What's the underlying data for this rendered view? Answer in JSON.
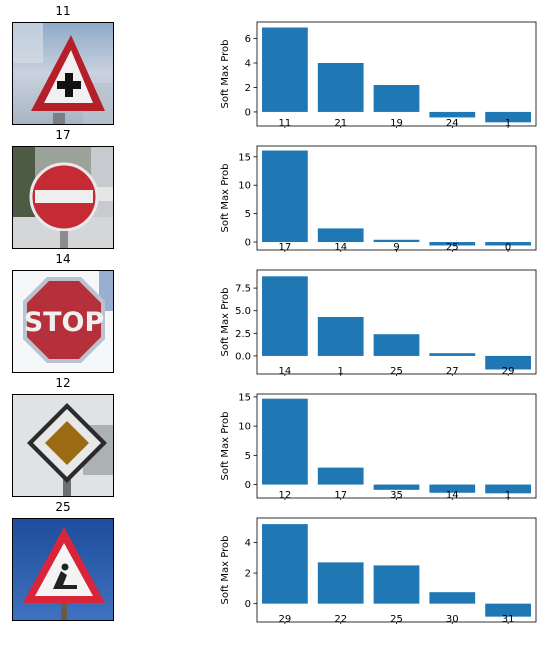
{
  "ylabel": "Soft Max Prob",
  "bar_color": "#1f77b4",
  "rows": [
    {
      "image_title": "11",
      "sign": "triangle-right-of-way-icon",
      "chart_data": {
        "type": "bar",
        "categories": [
          "11",
          "21",
          "19",
          "24",
          "1"
        ],
        "values": [
          6.9,
          4.0,
          2.2,
          -0.45,
          -0.85
        ],
        "ylim": [
          -1.15,
          7.35
        ],
        "yticks": [
          0,
          2,
          4,
          6
        ],
        "ylabel": "Soft Max Prob"
      }
    },
    {
      "image_title": "17",
      "sign": "no-entry-icon",
      "chart_data": {
        "type": "bar",
        "categories": [
          "17",
          "14",
          "9",
          "25",
          "0"
        ],
        "values": [
          16.1,
          2.4,
          0.4,
          -0.6,
          -0.6
        ],
        "ylim": [
          -1.4,
          16.9
        ],
        "yticks": [
          0,
          5,
          10,
          15
        ],
        "ylabel": "Soft Max Prob"
      }
    },
    {
      "image_title": "14",
      "sign": "stop-sign-icon",
      "chart_data": {
        "type": "bar",
        "categories": [
          "14",
          "1",
          "25",
          "27",
          "29"
        ],
        "values": [
          8.8,
          4.3,
          2.4,
          0.3,
          -1.5
        ],
        "ylim": [
          -2.0,
          9.5
        ],
        "yticks": [
          0.0,
          2.5,
          5.0,
          7.5
        ],
        "ylabel": "Soft Max Prob"
      }
    },
    {
      "image_title": "12",
      "sign": "priority-road-icon",
      "chart_data": {
        "type": "bar",
        "categories": [
          "12",
          "17",
          "35",
          "14",
          "1"
        ],
        "values": [
          14.7,
          2.9,
          -0.9,
          -1.4,
          -1.5
        ],
        "ylim": [
          -2.3,
          15.5
        ],
        "yticks": [
          0,
          5,
          10,
          15
        ],
        "ylabel": "Soft Max Prob"
      }
    },
    {
      "image_title": "25",
      "sign": "road-work-icon",
      "chart_data": {
        "type": "bar",
        "categories": [
          "29",
          "22",
          "25",
          "30",
          "31"
        ],
        "values": [
          5.2,
          2.7,
          2.5,
          0.75,
          -0.85
        ],
        "ylim": [
          -1.2,
          5.6
        ],
        "yticks": [
          0,
          2,
          4
        ],
        "ylabel": "Soft Max Prob"
      }
    }
  ]
}
